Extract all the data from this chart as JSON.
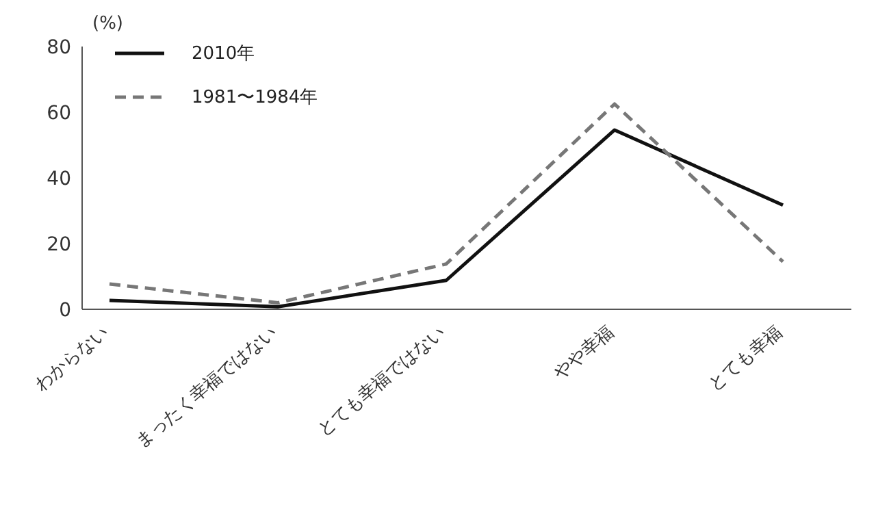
{
  "chart_data": {
    "type": "line",
    "ylabel": "(%)",
    "categories": [
      "わからない",
      "まったく幸福ではない",
      "とても幸福ではない",
      "やや幸福",
      "とても幸福"
    ],
    "series": [
      {
        "name": "2010年",
        "color": "#111111",
        "values": [
          2.7,
          0.8,
          8.8,
          54.6,
          31.7
        ],
        "line_style": "solid"
      },
      {
        "name": "1981〜1984年",
        "color": "#777777",
        "values": [
          7.7,
          2.0,
          13.8,
          62.5,
          14.5
        ],
        "line_style": "dashed"
      }
    ],
    "ylim": [
      0,
      80
    ],
    "yticks": [
      0,
      20,
      40,
      60,
      80
    ],
    "grid": false,
    "legend": "top left",
    "marker": "none"
  }
}
